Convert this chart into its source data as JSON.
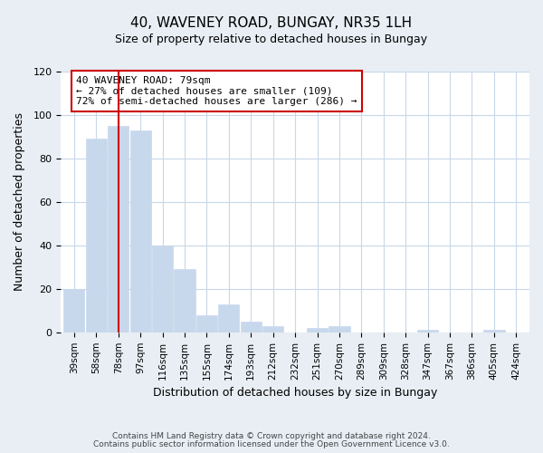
{
  "title": "40, WAVENEY ROAD, BUNGAY, NR35 1LH",
  "subtitle": "Size of property relative to detached houses in Bungay",
  "xlabel": "Distribution of detached houses by size in Bungay",
  "ylabel": "Number of detached properties",
  "bar_labels": [
    "39sqm",
    "58sqm",
    "78sqm",
    "97sqm",
    "116sqm",
    "135sqm",
    "155sqm",
    "174sqm",
    "193sqm",
    "212sqm",
    "232sqm",
    "251sqm",
    "270sqm",
    "289sqm",
    "309sqm",
    "328sqm",
    "347sqm",
    "367sqm",
    "386sqm",
    "405sqm",
    "424sqm"
  ],
  "bar_values": [
    20,
    89,
    95,
    93,
    40,
    29,
    8,
    13,
    5,
    3,
    0,
    2,
    3,
    0,
    0,
    0,
    1,
    0,
    0,
    1,
    0
  ],
  "bar_color": "#c8d8ec",
  "vline_x": 2,
  "vline_color": "#cc0000",
  "annotation_text": "40 WAVENEY ROAD: 79sqm\n← 27% of detached houses are smaller (109)\n72% of semi-detached houses are larger (286) →",
  "annotation_box_color": "#ffffff",
  "annotation_box_edgecolor": "#cc0000",
  "ylim": [
    0,
    120
  ],
  "yticks": [
    0,
    20,
    40,
    60,
    80,
    100,
    120
  ],
  "footer_line1": "Contains HM Land Registry data © Crown copyright and database right 2024.",
  "footer_line2": "Contains public sector information licensed under the Open Government Licence v3.0.",
  "bg_color": "#e8eef4",
  "plot_bg_color": "#ffffff",
  "grid_color": "#c8d8e8",
  "title_fontsize": 11,
  "subtitle_fontsize": 9
}
